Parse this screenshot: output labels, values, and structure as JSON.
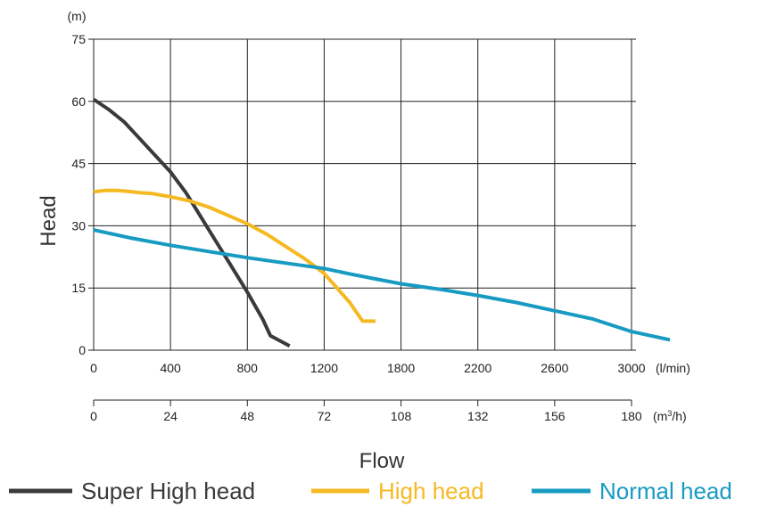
{
  "chart_data": {
    "type": "line",
    "y_axis": {
      "label": "Head",
      "unit": "(m)",
      "ticks": [
        0,
        15,
        30,
        45,
        60,
        75
      ],
      "range": [
        0,
        75
      ]
    },
    "x_axis": {
      "label": "Flow",
      "primary_unit": "(l/min)",
      "primary_ticks": [
        0,
        400,
        800,
        1200,
        1800,
        2200,
        2600,
        3000
      ],
      "primary_range": [
        0,
        3000
      ],
      "secondary_unit_base": "(m",
      "secondary_unit_sup": "3",
      "secondary_unit_tail": "/h)",
      "secondary_ticks": [
        0,
        24,
        48,
        72,
        108,
        132,
        156,
        180
      ]
    },
    "grid": true,
    "legend_position": "bottom",
    "series": [
      {
        "name": "Super High head",
        "color": "#3a3a3c",
        "x": [
          0,
          80,
          160,
          240,
          320,
          400,
          480,
          560,
          640,
          720,
          800,
          880,
          920,
          1020
        ],
        "y": [
          60.5,
          58,
          55,
          51,
          47,
          43,
          38,
          32,
          26,
          20,
          14,
          7.5,
          3.5,
          1
        ]
      },
      {
        "name": "High head",
        "color": "#f5b921",
        "x": [
          0,
          60,
          120,
          180,
          240,
          300,
          400,
          500,
          600,
          700,
          800,
          900,
          1000,
          1100,
          1200,
          1300,
          1400,
          1500,
          1600
        ],
        "y": [
          38.2,
          38.5,
          38.5,
          38.3,
          38,
          37.8,
          37,
          36,
          34.5,
          32.5,
          30.5,
          28,
          25,
          22,
          18.5,
          15,
          11.5,
          7,
          7
        ]
      },
      {
        "name": "Normal head",
        "color": "#179bc2",
        "x": [
          0,
          200,
          400,
          600,
          800,
          1000,
          1200,
          1400,
          1600,
          1800,
          2000,
          2200,
          2400,
          2600,
          2800,
          3000,
          3200
        ],
        "y": [
          29,
          27,
          25.3,
          23.8,
          22.3,
          21,
          19.7,
          18.4,
          17.2,
          16,
          14.7,
          13.2,
          11.5,
          9.5,
          7.5,
          4.5,
          2.5
        ]
      }
    ]
  }
}
